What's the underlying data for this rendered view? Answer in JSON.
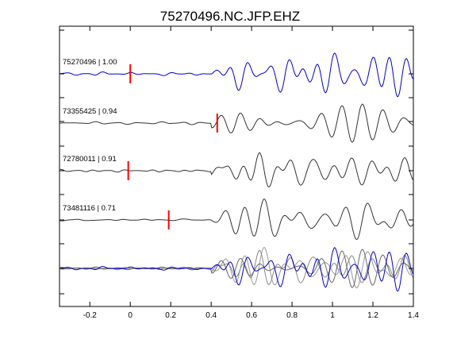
{
  "chart_data": {
    "type": "line",
    "title": "75270496.NC.JFP.EHZ",
    "xlabel": "",
    "ylabel": "",
    "xlim": [
      -0.35,
      1.4
    ],
    "x_ticks": [
      -0.2,
      0,
      0.2,
      0.4,
      0.6,
      0.8,
      1,
      1.2,
      1.4
    ],
    "x_tick_labels": [
      "-0.2",
      "0",
      "0.2",
      "0.4",
      "0.6",
      "0.8",
      "1",
      "1.2",
      "1.4"
    ],
    "grid": false,
    "legend": "none",
    "series": [
      {
        "event_id": "75270496",
        "correlation": "1.00",
        "label": "75270496 | 1.00",
        "pick_time": 0.0,
        "color": "#0000cc",
        "seed": 1
      },
      {
        "event_id": "73355425",
        "correlation": "0.94",
        "label": "73355425 | 0.94",
        "pick_time": 0.43,
        "color": "#333333",
        "seed": 2
      },
      {
        "event_id": "72780011",
        "correlation": "0.91",
        "label": "72780011 | 0.91",
        "pick_time": -0.01,
        "color": "#333333",
        "seed": 3
      },
      {
        "event_id": "73481116",
        "correlation": "0.71",
        "label": "73481116 | 0.71",
        "pick_time": 0.19,
        "color": "#333333",
        "seed": 4
      }
    ],
    "stack": {
      "label": "",
      "colors": [
        "#0000cc",
        "#666666",
        "#888888",
        "#999999"
      ]
    },
    "pick_color": "#ff0000"
  }
}
